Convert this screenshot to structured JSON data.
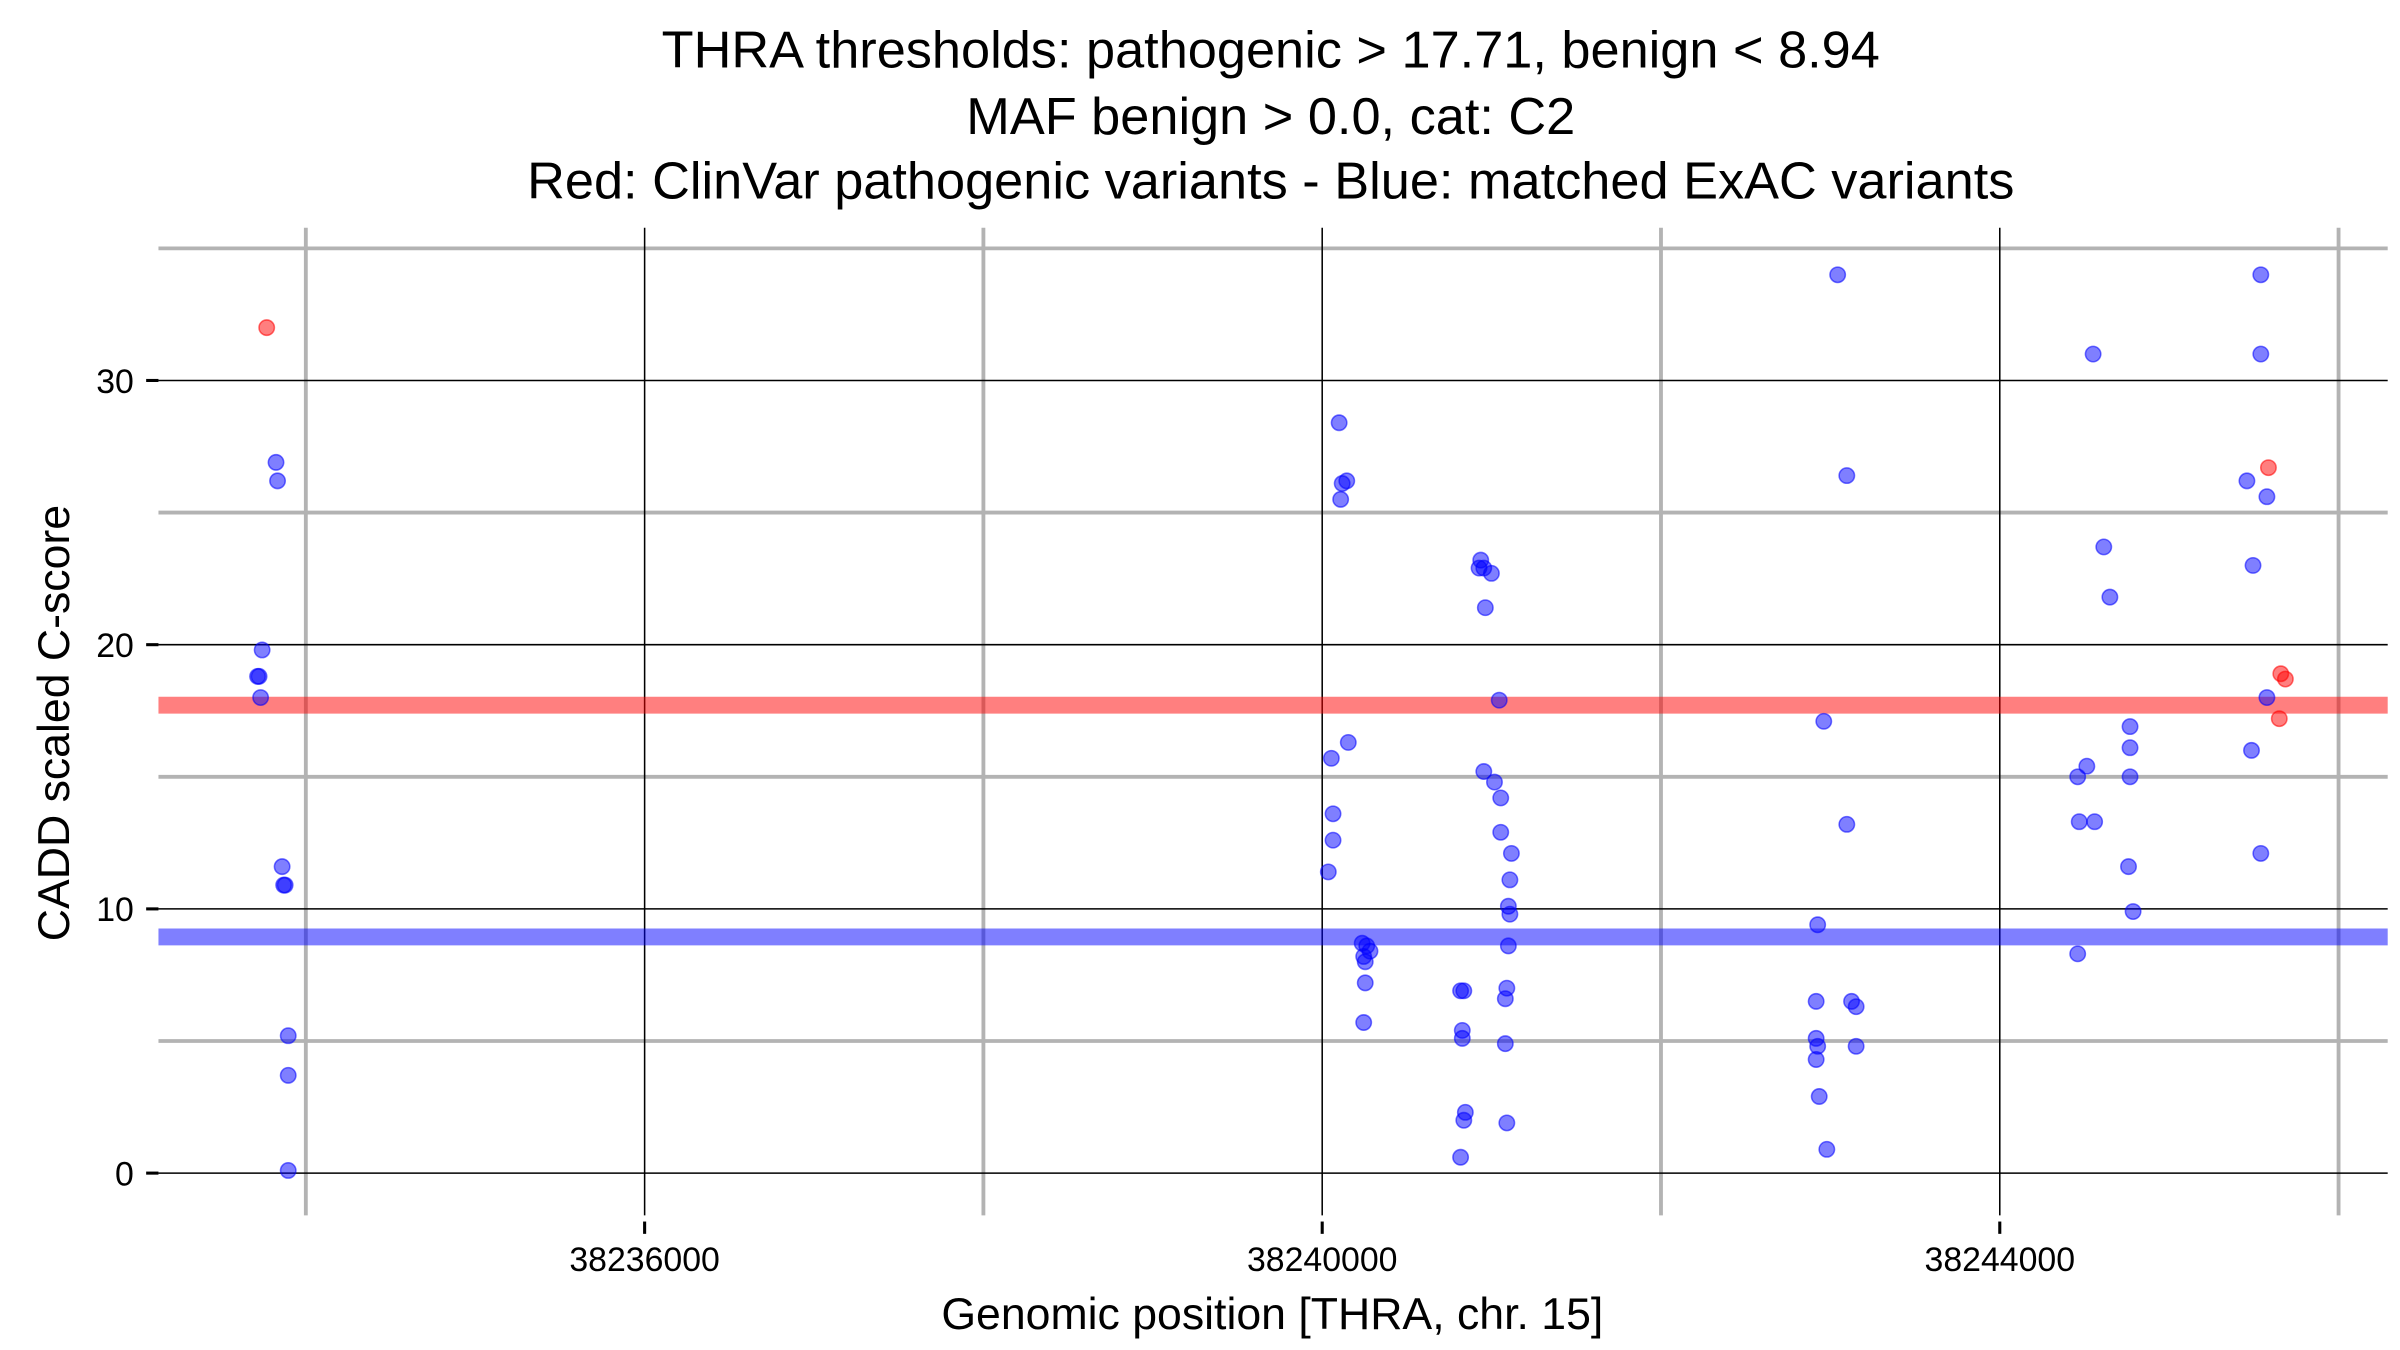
{
  "chart_data": {
    "type": "scatter",
    "title_lines": [
      "THRA thresholds: pathogenic > 17.71, benign < 8.94",
      "MAF benign > 0.0, cat: C2",
      "Red: ClinVar pathogenic variants - Blue: matched ExAC variants"
    ],
    "xlabel": "Genomic position [THRA, chr. 15]",
    "ylabel": "CADD scaled C-score",
    "xlim": [
      38233130,
      38246290
    ],
    "ylim": [
      -1.6,
      35.2
    ],
    "x_ticks": [
      38236000,
      38240000,
      38244000
    ],
    "x_tick_labels": [
      "38236000",
      "38240000",
      "38244000"
    ],
    "x_minor_grid": [
      38234000,
      38238000,
      38242000,
      38246000
    ],
    "y_ticks": [
      0,
      10,
      20,
      30
    ],
    "y_tick_labels": [
      "0",
      "10",
      "20",
      "30"
    ],
    "y_minor_grid": [
      5,
      15,
      25,
      35
    ],
    "grid": true,
    "thresholds": [
      {
        "name": "pathogenic",
        "value": 17.71,
        "color": "#ff0000"
      },
      {
        "name": "benign",
        "value": 8.94,
        "color": "#0000ff"
      }
    ],
    "series": [
      {
        "name": "ClinVar pathogenic variants",
        "color": "#ff0000",
        "points": [
          [
            38233769,
            32.0
          ],
          [
            38245586,
            26.7
          ],
          [
            38245659,
            18.9
          ],
          [
            38245686,
            18.7
          ],
          [
            38245650,
            17.2
          ]
        ]
      },
      {
        "name": "matched ExAC variants",
        "color": "#0000ff",
        "points": [
          [
            38233824,
            26.9
          ],
          [
            38233833,
            26.2
          ],
          [
            38233742,
            19.8
          ],
          [
            38233715,
            18.8
          ],
          [
            38233724,
            18.8
          ],
          [
            38233733,
            18.0
          ],
          [
            38233860,
            11.6
          ],
          [
            38233869,
            10.9
          ],
          [
            38233878,
            10.9
          ],
          [
            38233896,
            5.2
          ],
          [
            38233896,
            3.7
          ],
          [
            38233896,
            0.1
          ],
          [
            38240100,
            28.4
          ],
          [
            38240118,
            26.1
          ],
          [
            38240145,
            26.2
          ],
          [
            38240109,
            25.5
          ],
          [
            38240154,
            16.3
          ],
          [
            38240054,
            15.7
          ],
          [
            38240064,
            13.6
          ],
          [
            38240064,
            12.6
          ],
          [
            38240036,
            11.4
          ],
          [
            38240236,
            8.7
          ],
          [
            38240263,
            8.6
          ],
          [
            38240282,
            8.4
          ],
          [
            38240254,
            8.0
          ],
          [
            38240245,
            8.2
          ],
          [
            38240254,
            7.2
          ],
          [
            38240245,
            5.7
          ],
          [
            38240936,
            23.2
          ],
          [
            38240926,
            22.9
          ],
          [
            38240954,
            22.9
          ],
          [
            38240999,
            22.7
          ],
          [
            38240963,
            21.4
          ],
          [
            38241045,
            17.9
          ],
          [
            38240954,
            15.2
          ],
          [
            38241017,
            14.8
          ],
          [
            38241054,
            14.2
          ],
          [
            38241054,
            12.9
          ],
          [
            38241117,
            12.1
          ],
          [
            38241108,
            11.1
          ],
          [
            38241099,
            10.1
          ],
          [
            38241108,
            9.8
          ],
          [
            38241099,
            8.6
          ],
          [
            38240817,
            6.9
          ],
          [
            38240836,
            6.9
          ],
          [
            38241090,
            7.0
          ],
          [
            38241081,
            6.6
          ],
          [
            38240827,
            5.4
          ],
          [
            38240827,
            5.1
          ],
          [
            38241081,
            4.9
          ],
          [
            38240845,
            2.3
          ],
          [
            38240836,
            2.0
          ],
          [
            38241090,
            1.9
          ],
          [
            38240817,
            0.6
          ],
          [
            38243043,
            34.0
          ],
          [
            38243097,
            26.4
          ],
          [
            38242961,
            17.1
          ],
          [
            38243097,
            13.2
          ],
          [
            38242925,
            9.4
          ],
          [
            38242916,
            6.5
          ],
          [
            38243125,
            6.5
          ],
          [
            38243152,
            6.3
          ],
          [
            38242916,
            5.1
          ],
          [
            38242925,
            4.8
          ],
          [
            38243152,
            4.8
          ],
          [
            38242916,
            4.3
          ],
          [
            38242934,
            2.9
          ],
          [
            38242979,
            0.9
          ],
          [
            38244551,
            31.0
          ],
          [
            38244614,
            23.7
          ],
          [
            38244650,
            21.8
          ],
          [
            38244769,
            16.9
          ],
          [
            38244769,
            16.1
          ],
          [
            38244514,
            15.4
          ],
          [
            38244460,
            15.0
          ],
          [
            38244769,
            15.0
          ],
          [
            38244469,
            13.3
          ],
          [
            38244560,
            13.3
          ],
          [
            38244760,
            11.6
          ],
          [
            38244787,
            9.9
          ],
          [
            38244460,
            8.3
          ],
          [
            38245541,
            34.0
          ],
          [
            38245541,
            31.0
          ],
          [
            38245459,
            26.2
          ],
          [
            38245577,
            25.6
          ],
          [
            38245495,
            23.0
          ],
          [
            38245577,
            18.0
          ],
          [
            38245486,
            16.0
          ],
          [
            38245541,
            12.1
          ]
        ]
      }
    ]
  }
}
